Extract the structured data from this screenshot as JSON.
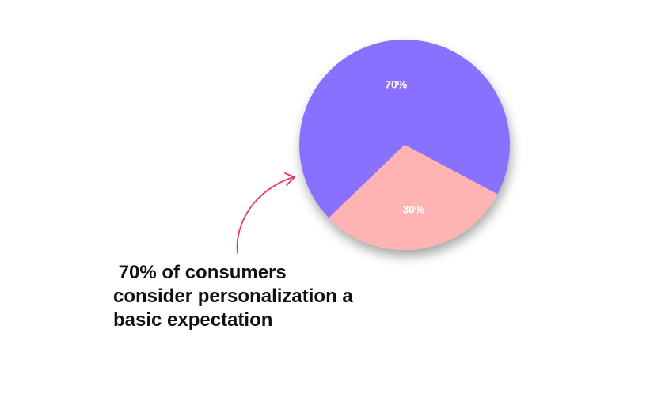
{
  "chart_data": {
    "type": "pie",
    "slices": [
      {
        "label": "70%",
        "value": 70,
        "color": "#8a70ff"
      },
      {
        "label": "30%",
        "value": 30,
        "color": "#ffb3b3"
      }
    ]
  },
  "caption": {
    "lines": [
      " 70% of consumers",
      "consider personalization a",
      "basic expectation"
    ]
  },
  "colors": {
    "arrow": "#f0346a",
    "text": "#111111",
    "background": "#ffffff"
  },
  "icons": {
    "pointer": "curved-arrow-icon"
  }
}
